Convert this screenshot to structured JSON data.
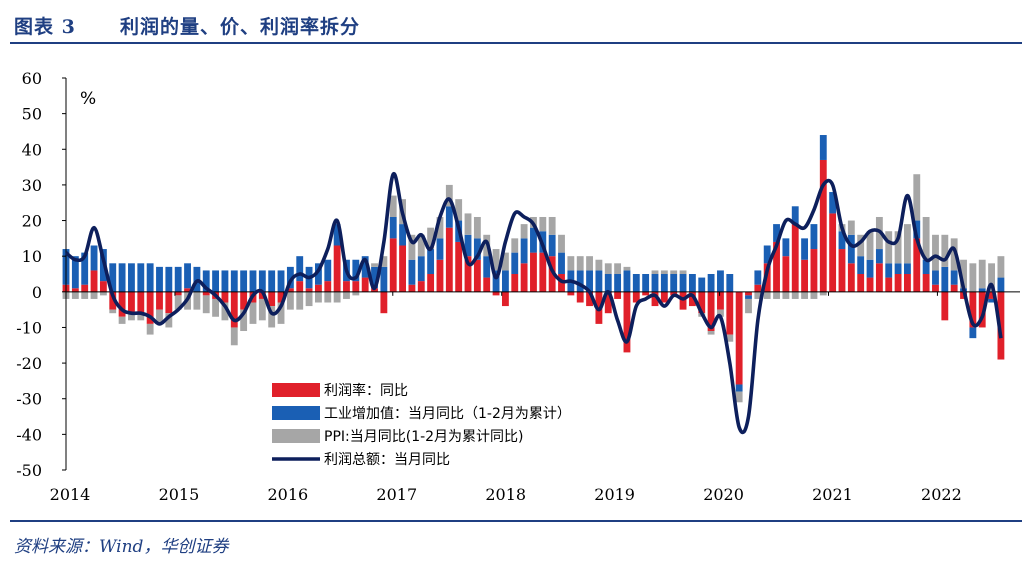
{
  "header": {
    "figure_label": "图表 3",
    "title": "利润的量、价、利润率拆分"
  },
  "source": "资料来源：Wind，华创证券",
  "chart_data": {
    "type": "bar",
    "unit": "%",
    "ylim": [
      -50,
      60
    ],
    "yticks": [
      60,
      50,
      40,
      30,
      20,
      10,
      0,
      -10,
      -20,
      -30,
      -40,
      -50
    ],
    "xlim": [
      2014.0,
      2022.583
    ],
    "year_labels": [
      "2014",
      "2015",
      "2016",
      "2017",
      "2018",
      "2019",
      "2020",
      "2021",
      "2022"
    ],
    "colors": {
      "margin": "#e0202a",
      "volume": "#1a5fb4",
      "ppi": "#a6a6a6",
      "total": "#0d1f5c"
    },
    "legend": [
      {
        "name": "利润率：同比",
        "kind": "bar",
        "color": "#e0202a"
      },
      {
        "name": "工业增加值：当月同比（1-2月为累计）",
        "kind": "bar",
        "color": "#1a5fb4"
      },
      {
        "name": "PPI:当月同比(1-2月为累计同比)",
        "kind": "bar",
        "color": "#a6a6a6"
      },
      {
        "name": "利润总额：当月同比",
        "kind": "line",
        "color": "#0d1f5c"
      }
    ],
    "series": [
      {
        "name": "利润率：同比",
        "values": [
          2,
          1,
          2,
          6,
          3,
          -5,
          -7,
          -6,
          -6,
          -9,
          -5,
          -6,
          -1,
          1,
          0,
          -1,
          -2,
          -3,
          -10,
          -5,
          -3,
          -2,
          -4,
          -3,
          1,
          3,
          1,
          2,
          3,
          13,
          3,
          3,
          4,
          1,
          -6,
          15,
          13,
          2,
          3,
          5,
          9,
          18,
          14,
          10,
          9,
          4,
          -1,
          -4,
          5,
          8,
          11,
          11,
          10,
          5,
          -1,
          -3,
          -4,
          -9,
          -6,
          -2,
          -17,
          -3,
          -1,
          -4,
          -3,
          -1,
          -5,
          -4,
          -6,
          -11,
          -5,
          -12,
          -26,
          -1,
          2,
          8,
          14,
          10,
          19,
          9,
          12,
          37,
          22,
          12,
          8,
          5,
          4,
          8,
          4,
          5,
          5,
          15,
          5,
          2,
          -8,
          2,
          -2,
          -10,
          -10,
          -2,
          -19
        ]
      },
      {
        "name": "工业增加值：当月同比（1-2月为累计）",
        "values": [
          10,
          9,
          9,
          7,
          9,
          8,
          8,
          8,
          8,
          8,
          7,
          7,
          7,
          7,
          7,
          6,
          6,
          6,
          6,
          6,
          6,
          6,
          6,
          6,
          6,
          7,
          6,
          6,
          6,
          6,
          6,
          6,
          6,
          6,
          7,
          6,
          6,
          7,
          7,
          7,
          6,
          6,
          6,
          6,
          6,
          6,
          6,
          6,
          6,
          7,
          7,
          6,
          6,
          6,
          6,
          6,
          6,
          6,
          5,
          5,
          6,
          5,
          5,
          5,
          5,
          5,
          5,
          5,
          4,
          5,
          6,
          5,
          -2,
          -1,
          4,
          5,
          5,
          5,
          5,
          6,
          7,
          7,
          6,
          5,
          8,
          5,
          5,
          4,
          4,
          3,
          3,
          5,
          4,
          4,
          7,
          4,
          1,
          -3,
          1,
          -1,
          4,
          4
        ]
      },
      {
        "name": "PPI:当月同比(1-2月为累计同比)",
        "values": [
          -2,
          -2,
          -2,
          -2,
          -1,
          -1,
          -2,
          -2,
          -2,
          -3,
          -4,
          -4,
          -4,
          -5,
          -5,
          -5,
          -5,
          -5,
          -5,
          -6,
          -6,
          -6,
          -6,
          -6,
          -5,
          -5,
          -4,
          -3,
          -3,
          -3,
          -2,
          -1,
          0,
          1,
          3,
          6,
          7,
          7,
          6,
          6,
          6,
          6,
          6,
          6,
          6,
          6,
          6,
          5,
          4,
          4,
          3,
          4,
          5,
          5,
          4,
          4,
          4,
          3,
          3,
          3,
          1,
          0,
          0,
          1,
          1,
          1,
          1,
          0,
          -1,
          -1,
          -2,
          -2,
          -3,
          -4,
          -2,
          -2,
          -2,
          -2,
          -2,
          -2,
          -2,
          -1,
          0,
          2,
          4,
          6,
          8,
          9,
          9,
          9,
          11,
          13,
          12,
          10,
          9,
          9,
          8,
          8,
          8,
          8,
          6,
          5
        ]
      },
      {
        "name": "利润总额：当月同比",
        "values": [
          11,
          9,
          10,
          18,
          9,
          -1,
          -5,
          -6,
          -6,
          -7,
          -9,
          -7,
          -5,
          -2,
          3,
          1,
          -1,
          -4,
          -8,
          -6,
          -1,
          0,
          -6,
          -4,
          3,
          5,
          4,
          6,
          12,
          20,
          6,
          4,
          9,
          1,
          14,
          33,
          22,
          14,
          16,
          12,
          21,
          26,
          18,
          8,
          10,
          14,
          4,
          14,
          22,
          21,
          19,
          13,
          6,
          3,
          3,
          2,
          0,
          -5,
          0,
          -8,
          -14,
          -4,
          -2,
          -1,
          -4,
          -1,
          -2,
          -1,
          -6,
          -10,
          -7,
          -20,
          -38,
          -35,
          -8,
          6,
          13,
          20,
          19,
          18,
          23,
          30,
          30,
          18,
          13,
          14,
          17,
          17,
          14,
          15,
          27,
          15,
          9,
          10,
          9,
          12,
          1,
          -9,
          -7,
          2,
          -13
        ]
      }
    ]
  }
}
